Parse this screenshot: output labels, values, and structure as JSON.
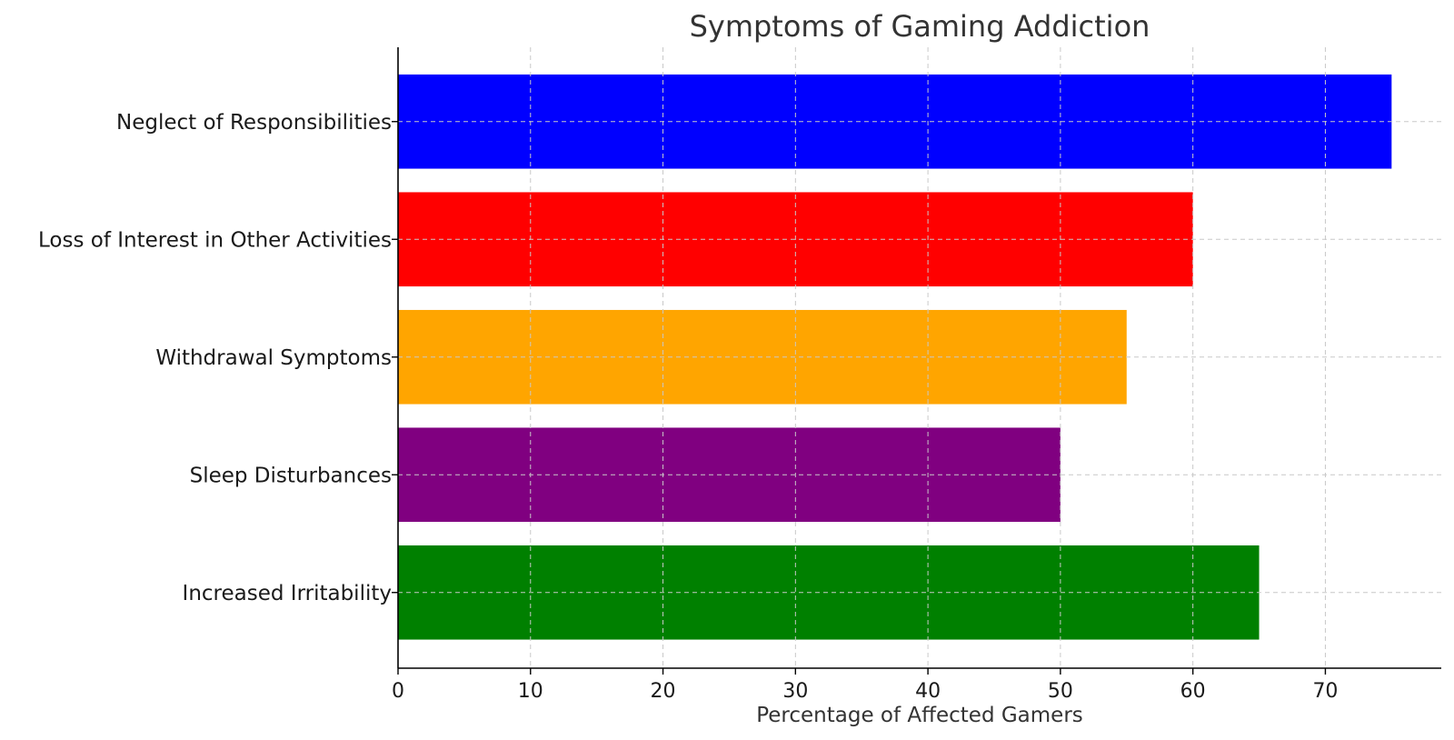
{
  "chart_data": {
    "type": "bar",
    "orientation": "horizontal",
    "title": "Symptoms of Gaming Addiction",
    "xlabel": "Percentage of Affected Gamers",
    "ylabel": "",
    "categories": [
      "Neglect of Responsibilities",
      "Loss of Interest in Other Activities",
      "Withdrawal Symptoms",
      "Sleep Disturbances",
      "Increased Irritability"
    ],
    "values": [
      75,
      60,
      55,
      50,
      65
    ],
    "colors": [
      "#0000ff",
      "#ff0000",
      "#ffa500",
      "#800080",
      "#008000"
    ],
    "xlim": [
      0,
      78.75
    ],
    "xticks": [
      0,
      10,
      20,
      30,
      40,
      50,
      60,
      70
    ],
    "grid": true,
    "legend": "none"
  }
}
